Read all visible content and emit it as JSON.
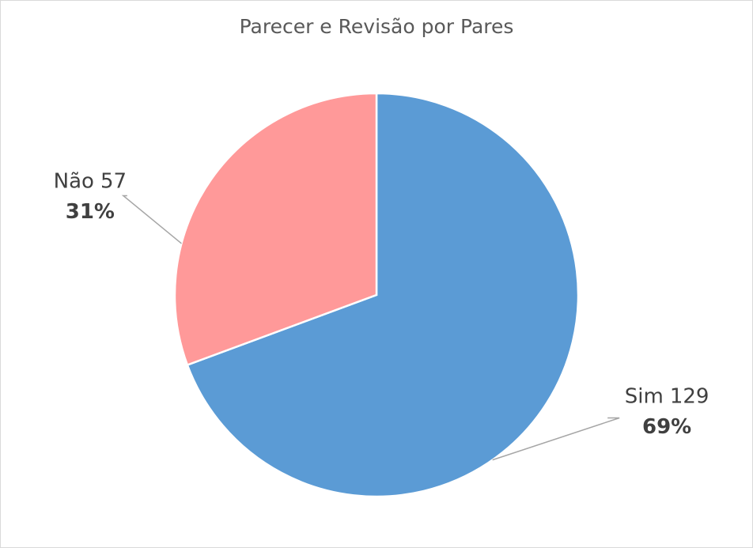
{
  "chart_data": {
    "type": "pie",
    "title": "Parecer e Revisão por Pares",
    "categories": [
      "Sim",
      "Não"
    ],
    "values": [
      129,
      57
    ],
    "percent_labels": [
      "69%",
      "31%"
    ],
    "colors": [
      "#5b9bd5",
      "#ff9999"
    ]
  }
}
